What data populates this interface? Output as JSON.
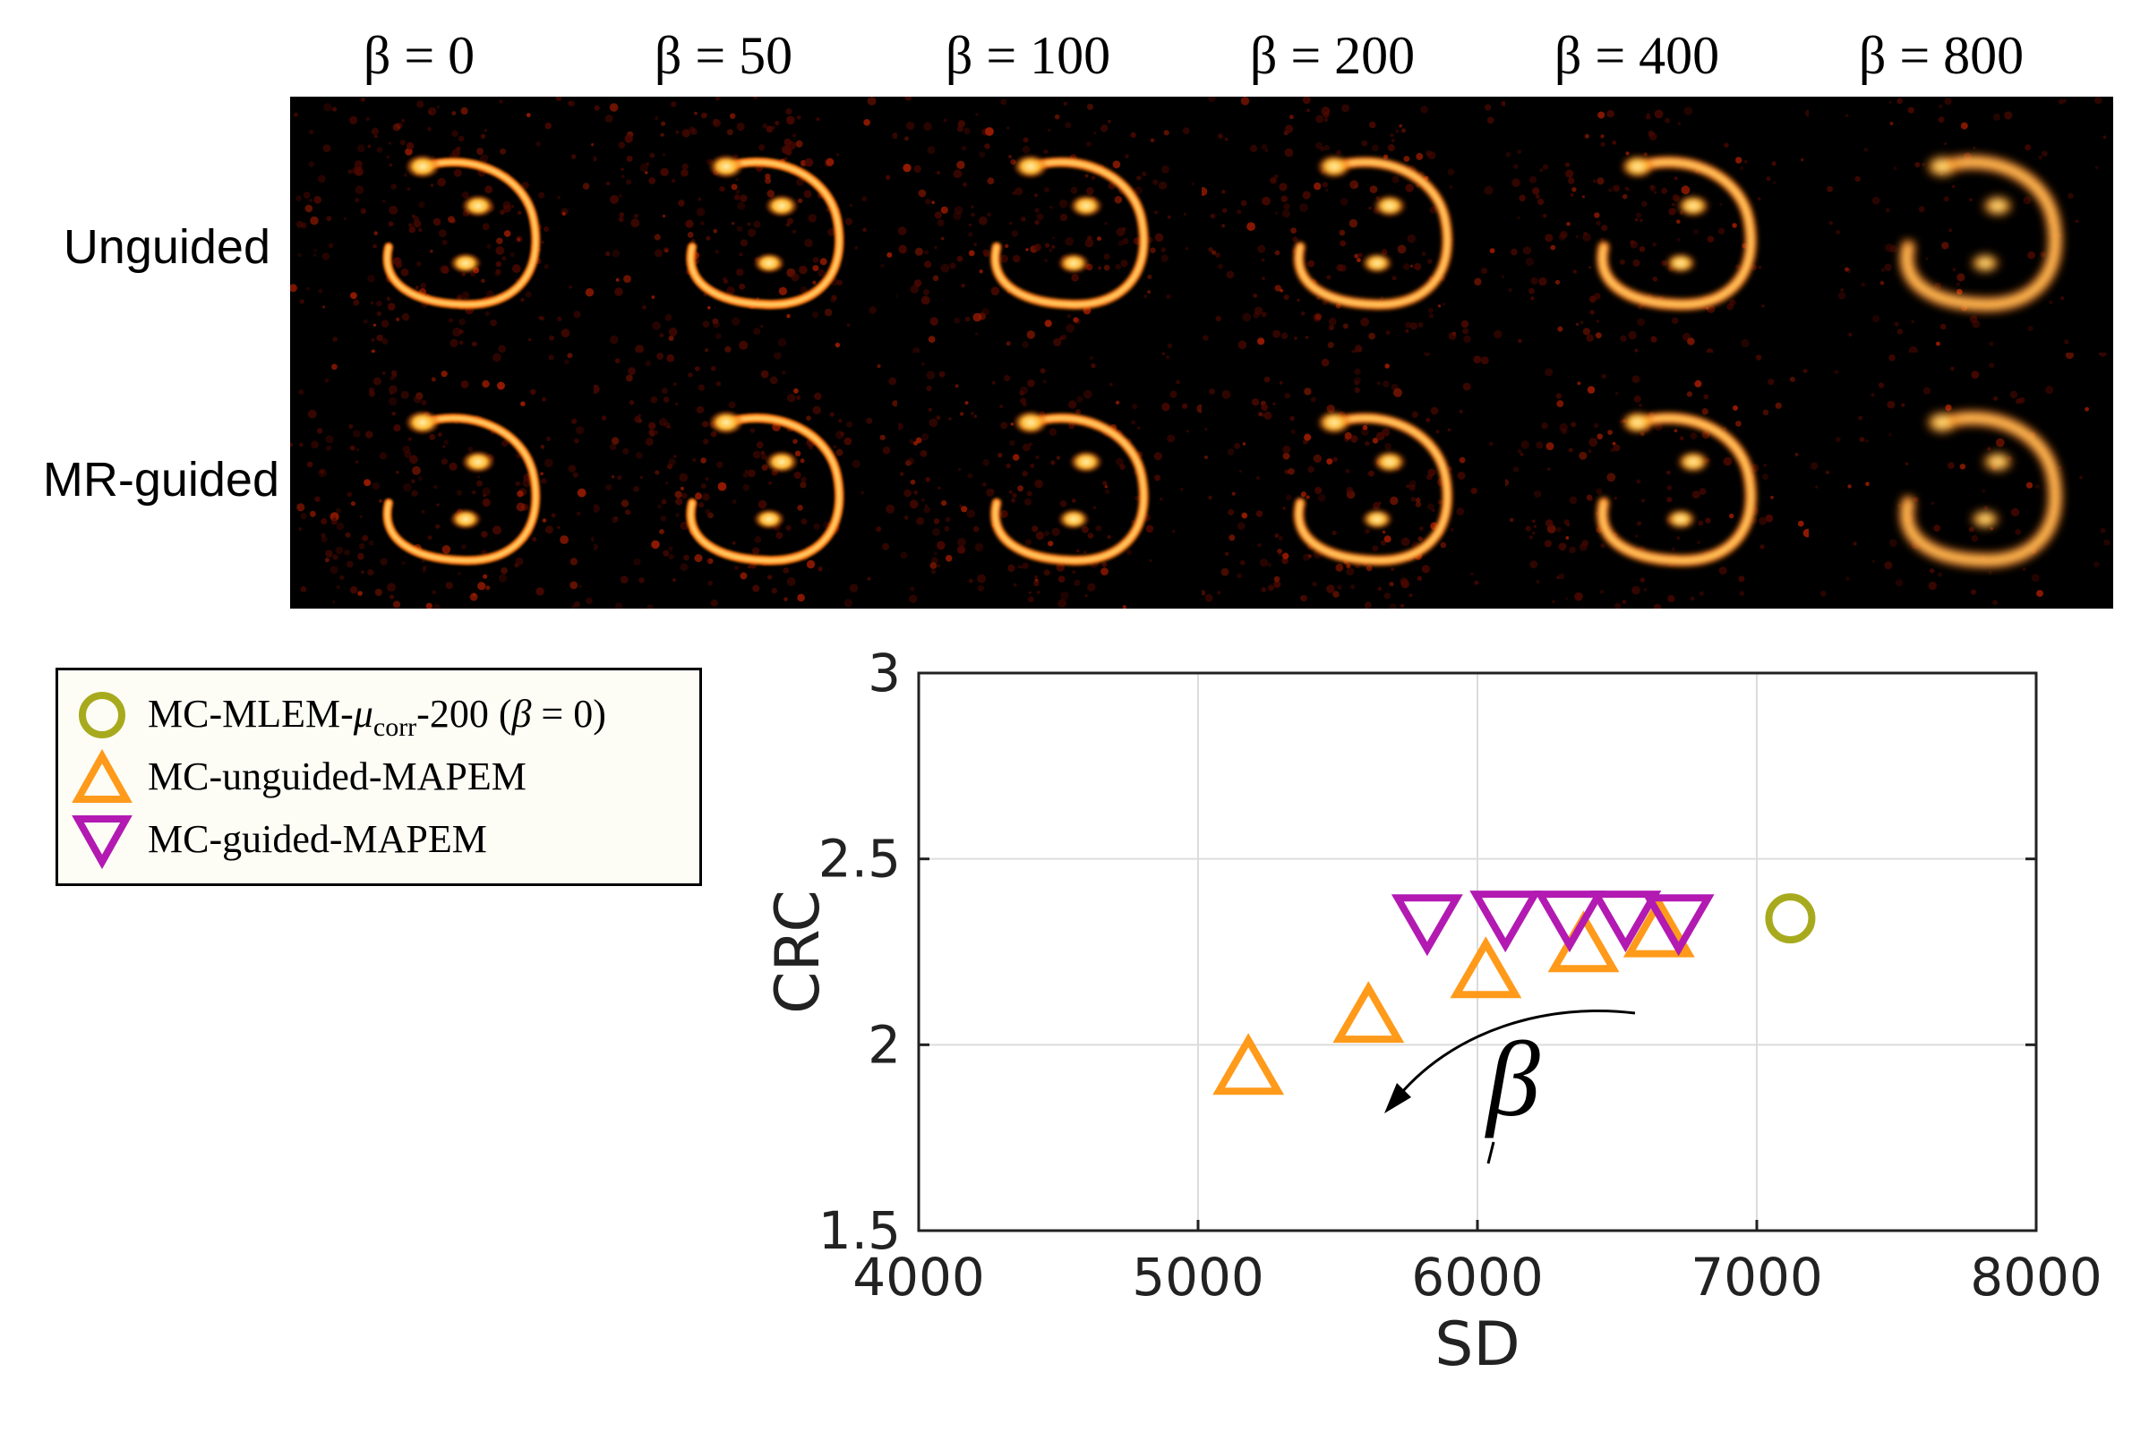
{
  "figure": {
    "beta_symbol": "β",
    "columns": [
      {
        "label": "β = 0",
        "beta": 0
      },
      {
        "label": "β = 50",
        "beta": 50
      },
      {
        "label": "β = 100",
        "beta": 100
      },
      {
        "label": "β = 200",
        "beta": 200
      },
      {
        "label": "β = 400",
        "beta": 400
      },
      {
        "label": "β = 800",
        "beta": 800
      }
    ],
    "rows": [
      {
        "label": "Unguided"
      },
      {
        "label": "MR-guided"
      }
    ],
    "image_colors": {
      "background": "#000000",
      "low": "#5a0a00",
      "mid": "#e23a00",
      "high": "#ffd27a"
    }
  },
  "chart_data": {
    "type": "scatter",
    "xlabel": "SD",
    "ylabel": "CRC",
    "xlim": [
      4000,
      8000
    ],
    "ylim": [
      1.5,
      3
    ],
    "xticks": [
      4000,
      5000,
      6000,
      7000,
      8000
    ],
    "yticks": [
      1.5,
      2,
      2.5,
      3
    ],
    "yticklabels": [
      "1.5",
      "2",
      "2.5",
      "3"
    ],
    "grid": true,
    "legend_position": "outside-left",
    "annotation": {
      "text": "β",
      "meaning": "increasing beta direction"
    },
    "series": [
      {
        "name": "MC-MLEM-μcorr-200 (β = 0)",
        "legend": {
          "pre": "MC-MLEM-",
          "mu": "μ",
          "sub": "corr",
          "post": "-200 (",
          "beta": "β",
          "eq": " = 0)"
        },
        "marker": "circle",
        "color": "#a8aa1e",
        "points": [
          {
            "x": 7120,
            "y": 2.34
          }
        ]
      },
      {
        "name": "MC-unguided-MAPEM",
        "marker": "triangle-up",
        "color": "#ff9a1a",
        "points": [
          {
            "x": 5180,
            "y": 1.94
          },
          {
            "x": 5610,
            "y": 2.08
          },
          {
            "x": 6030,
            "y": 2.2
          },
          {
            "x": 6380,
            "y": 2.27
          },
          {
            "x": 6650,
            "y": 2.31
          }
        ]
      },
      {
        "name": "MC-guided-MAPEM",
        "marker": "triangle-down",
        "color": "#b21ab2",
        "points": [
          {
            "x": 5820,
            "y": 2.33
          },
          {
            "x": 6100,
            "y": 2.34
          },
          {
            "x": 6330,
            "y": 2.34
          },
          {
            "x": 6530,
            "y": 2.34
          },
          {
            "x": 6720,
            "y": 2.33
          }
        ]
      }
    ]
  }
}
